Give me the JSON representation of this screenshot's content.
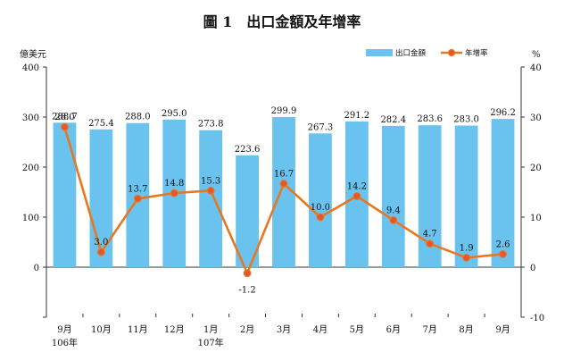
{
  "chart_data": {
    "type": "bar",
    "title": "圖 1　出口金額及年增率",
    "left_axis_unit": "億美元",
    "right_axis_unit": "%",
    "categories": [
      "9月",
      "10月",
      "11月",
      "12月",
      "1月",
      "2月",
      "3月",
      "4月",
      "5月",
      "6月",
      "7月",
      "8月",
      "9月"
    ],
    "year_labels": [
      "106年",
      "",
      "",
      "",
      "107年",
      "",
      "",
      "",
      "",
      "",
      "",
      "",
      ""
    ],
    "left_ticks": [
      "400",
      "300",
      "200",
      "100",
      "0"
    ],
    "right_ticks": [
      "40",
      "30",
      "20",
      "10",
      "0",
      "-10"
    ],
    "left_ylim": [
      -100,
      400
    ],
    "right_ylim": [
      -10,
      40
    ],
    "grid": false,
    "legend_position": "top-right",
    "series": [
      {
        "name": "出口金額",
        "type": "bar",
        "axis": "left",
        "color": "#69c3ee",
        "values": [
          288.7,
          275.4,
          288.0,
          295.0,
          273.8,
          223.6,
          299.9,
          267.3,
          291.2,
          282.4,
          283.6,
          283.0,
          296.2
        ],
        "labels": [
          "288.7",
          "275.4",
          "288.0",
          "295.0",
          "273.8",
          "223.6",
          "299.9",
          "267.3",
          "291.2",
          "282.4",
          "283.6",
          "283.0",
          "296.2"
        ]
      },
      {
        "name": "年增率",
        "type": "line",
        "axis": "right",
        "color": "#e87722",
        "marker_fill": "#e4572e",
        "values": [
          28.0,
          3.0,
          13.7,
          14.8,
          15.3,
          -1.2,
          16.7,
          10.0,
          14.2,
          9.4,
          4.7,
          1.9,
          2.6
        ],
        "labels": [
          "28.0",
          "3.0",
          "13.7",
          "14.8",
          "15.3",
          "-1.2",
          "16.7",
          "10.0",
          "14.2",
          "9.4",
          "4.7",
          "1.9",
          "2.6"
        ]
      }
    ]
  }
}
